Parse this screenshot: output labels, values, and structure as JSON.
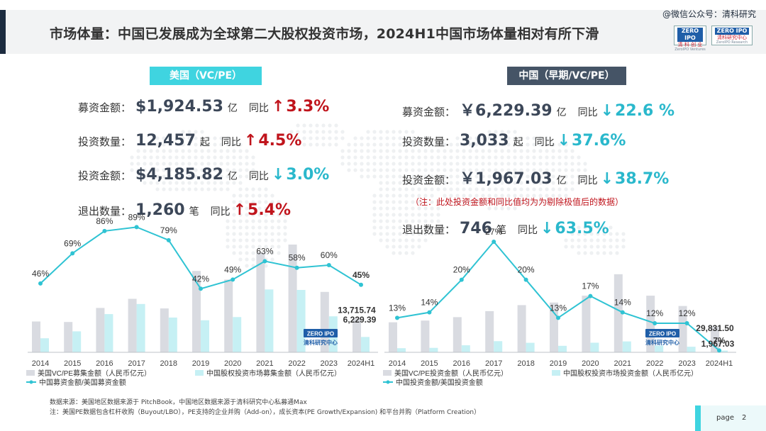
{
  "header": {
    "title": "市场体量：中国已发展成为全球第二大股权投资市场，2024H1中国市场体量相对有所下滑",
    "watermark": "@微信公众号：清科研究",
    "logo_left": {
      "line1": "ZERO IPO",
      "line2": "清 科 创 业",
      "line3": "ZeroIPO Ventures"
    },
    "logo_right": {
      "line1": "ZERO IPO",
      "line2": "清科研究中心",
      "line3": "ZeroIPO Research"
    }
  },
  "us_panel": {
    "tag": "美国（VC/PE）",
    "metrics": [
      {
        "label": "募资金额：",
        "value": "$1,924.53",
        "unit": "亿",
        "yoy_label": "同比",
        "arrow": "↑",
        "pct": "3.3%",
        "direction": "up"
      },
      {
        "label": "投资数量：",
        "value": "12,457",
        "unit": "起",
        "yoy_label": "同比",
        "arrow": "↑",
        "pct": "4.5%",
        "direction": "up"
      },
      {
        "label": "投资金额：",
        "value": "$4,185.82",
        "unit": "亿",
        "yoy_label": "同比",
        "arrow": "↓",
        "pct": "3.0%",
        "direction": "down"
      },
      {
        "label": "退出数量：",
        "value": "1,260",
        "unit": "笔",
        "yoy_label": "同比",
        "arrow": "↑",
        "pct": "5.4%",
        "direction": "up"
      }
    ]
  },
  "cn_panel": {
    "tag": "中国（早期/VC/PE）",
    "metrics": [
      {
        "label": "募资金额：",
        "value": "￥6,229.39",
        "unit": "亿",
        "yoy_label": "同比",
        "arrow": "↓",
        "pct": "22.6 %",
        "direction": "down"
      },
      {
        "label": "投资数量：",
        "value": "3,033",
        "unit": "起",
        "yoy_label": "同比",
        "arrow": "↓",
        "pct": "37.6%",
        "direction": "down"
      },
      {
        "label": "投资金额：",
        "value": "￥1,967.03",
        "unit": "亿",
        "yoy_label": "同比",
        "arrow": "↓",
        "pct": "38.7%",
        "direction": "down"
      },
      {
        "label": "退出数量：",
        "value": "746",
        "unit": "笔",
        "yoy_label": "同比",
        "arrow": "↓",
        "pct": "63.5%",
        "direction": "down"
      }
    ],
    "note": "（注：此处投资金额和同比值均为为剔除极值后的数据）"
  },
  "colors": {
    "us_bar": "#d9dbe1",
    "cn_bar": "#c6f0f4",
    "ratio_line": "#2fc3d3",
    "up": "#c0141c",
    "down": "#2ab8cc"
  },
  "chart_data": [
    {
      "type": "bar",
      "categories": [
        "2014",
        "2015",
        "2016",
        "2017",
        "2018",
        "2019",
        "2020",
        "2021",
        "2022",
        "2023",
        "2024H1"
      ],
      "series": [
        {
          "name": "美国VC/PE募集金额（人民币亿元）",
          "kind": "bar",
          "values": [
            12500,
            12300,
            18000,
            21700,
            17800,
            33000,
            29500,
            40500,
            43700,
            24500,
            13715.74
          ]
        },
        {
          "name": "中国股权投资市场募集金额（人民币亿元）",
          "kind": "bar",
          "values": [
            5700,
            8500,
            15500,
            19600,
            14100,
            13000,
            14300,
            25500,
            25300,
            14600,
            6229.39
          ]
        },
        {
          "name": "中国募资金额/美国募资金额",
          "kind": "line",
          "axis": "right",
          "values": [
            46,
            69,
            86,
            89,
            79,
            42,
            49,
            63,
            58,
            60,
            45
          ]
        }
      ],
      "data_labels": {
        "ratio": [
          "46%",
          "69%",
          "86%",
          "89%",
          "79%",
          "42%",
          "49%",
          "63%",
          "58%",
          "60%",
          "45%"
        ],
        "last_us": "13,715.74",
        "last_cn": "6,229.39"
      }
    },
    {
      "type": "bar",
      "categories": [
        "2014",
        "2015",
        "2016",
        "2017",
        "2018",
        "2019",
        "2020",
        "2021",
        "2022",
        "2023",
        "2024H1"
      ],
      "series": [
        {
          "name": "美国VC/PE投资金额（人民币亿元）",
          "kind": "bar",
          "values": [
            35000,
            37000,
            41000,
            48000,
            55000,
            58000,
            66000,
            91000,
            66000,
            54000,
            29831.5
          ]
        },
        {
          "name": "中国股权投资市场投资金额（人民币亿元）",
          "kind": "bar",
          "values": [
            4800,
            5200,
            8200,
            13000,
            11100,
            7600,
            11200,
            12700,
            7900,
            6500,
            1967.03
          ]
        },
        {
          "name": "中国投资金额/美国投资金额",
          "kind": "line",
          "axis": "right",
          "values": [
            13,
            14,
            20,
            27,
            20,
            13,
            17,
            14,
            12,
            12,
            7
          ]
        }
      ],
      "data_labels": {
        "ratio": [
          "13%",
          "14%",
          "20%",
          "27%",
          "20%",
          "13%",
          "17%",
          "14%",
          "12%",
          "12%",
          "7%"
        ],
        "last_us": "29,831.50",
        "last_cn": "1,967.03"
      }
    }
  ],
  "footer": {
    "source": "数据来源：美国地区数据来源于 PitchBook，中国地区数据来源于清科研究中心私募通Max",
    "note": "注：美国PE数据包含杠杆收购（Buyout/LBO），PE支持的企业并购（Add-on），成长资本(PE Growth/Expansion) 和平台并购（Platform Creation）",
    "page_label": "page",
    "page_number": "2"
  }
}
